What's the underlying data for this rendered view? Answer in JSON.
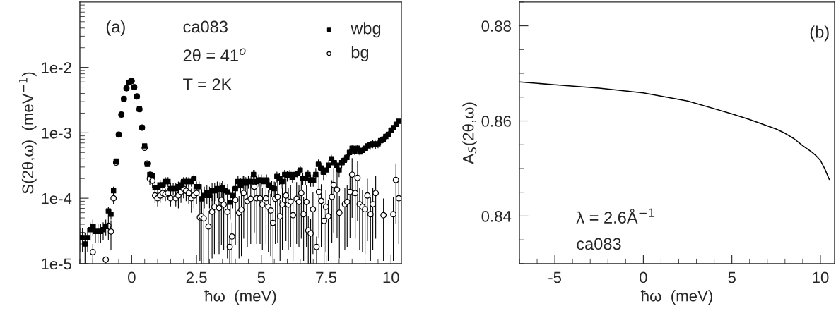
{
  "chart_data": [
    {
      "type": "scatter",
      "xlabel": "ħω  (meV)",
      "ylabel": "S(2θ,ω)  (meV$^{−1}$)",
      "log": "y",
      "xlim": [
        -2,
        10.4
      ],
      "ylim": [
        1e-05,
        0.1
      ],
      "xticks": [
        0,
        2.5,
        5,
        7.5,
        10
      ],
      "yticks": [
        {
          "value": 1e-05,
          "label": "1e-5"
        },
        {
          "value": 0.0001,
          "label": "1e-4"
        },
        {
          "value": 0.001,
          "label": "1e-3"
        },
        {
          "value": 0.01,
          "label": "1e-2"
        }
      ],
      "legend": "top right",
      "grid": false,
      "annotations": [
        "(a)",
        "ca083",
        "2θ = 41$^{o}$",
        "T = 2K"
      ],
      "series": [
        {
          "name": "wbg",
          "color": "#000000",
          "marker": "square",
          "x": [
            -2.0,
            -1.9,
            -1.8,
            -1.7,
            -1.6,
            -1.5,
            -1.4,
            -1.3,
            -1.2,
            -1.1,
            -1.0,
            -0.9,
            -0.8,
            -0.7,
            -0.6,
            -0.5,
            -0.4,
            -0.3,
            -0.2,
            -0.1,
            0.0,
            0.1,
            0.2,
            0.3,
            0.4,
            0.5,
            0.6,
            0.7,
            0.8,
            0.9,
            1.0,
            1.1,
            1.2,
            1.3,
            1.4,
            1.5,
            1.6,
            1.7,
            1.8,
            1.9,
            2.0,
            2.1,
            2.2,
            2.3,
            2.4,
            2.5,
            2.6,
            2.7,
            2.8,
            2.9,
            3.0,
            3.1,
            3.2,
            3.3,
            3.4,
            3.5,
            3.6,
            3.7,
            3.8,
            3.9,
            4.0,
            4.1,
            4.2,
            4.3,
            4.4,
            4.5,
            4.6,
            4.7,
            4.8,
            4.9,
            5.0,
            5.1,
            5.2,
            5.3,
            5.4,
            5.5,
            5.6,
            5.7,
            5.8,
            5.9,
            6.0,
            6.1,
            6.2,
            6.3,
            6.4,
            6.5,
            6.6,
            6.7,
            6.8,
            6.9,
            7.0,
            7.1,
            7.2,
            7.3,
            7.4,
            7.5,
            7.6,
            7.7,
            7.8,
            7.9,
            8.0,
            8.1,
            8.2,
            8.3,
            8.4,
            8.5,
            8.6,
            8.7,
            8.8,
            8.9,
            9.0,
            9.1,
            9.2,
            9.3,
            9.4,
            9.5,
            9.6,
            9.7,
            9.8,
            9.9,
            10.0,
            10.1,
            10.2,
            10.3
          ],
          "values": [
            2.5e-05,
            2.5e-05,
            2e-05,
            2.5e-05,
            3.3e-05,
            3.7e-05,
            3.1e-05,
            3.1e-05,
            3.1e-05,
            3.3e-05,
            3.7e-05,
            6.4e-05,
            5.7e-05,
            0.00013,
            0.00037,
            0.00094,
            0.0019,
            0.0033,
            0.0048,
            0.0059,
            0.0062,
            0.005,
            0.0036,
            0.0023,
            0.0012,
            0.00063,
            0.00033,
            0.00023,
            0.00022,
            0.000145,
            0.000145,
            0.00016,
            0.00016,
            0.00018,
            0.00018,
            0.00014,
            0.00014,
            0.00014,
            0.00015,
            0.00016,
            0.00018,
            0.00018,
            0.00018,
            0.00018,
            0.0002,
            0.00015,
            0.00015,
            9.8e-05,
            0.00011,
            0.00012,
            0.00011,
            0.00013,
            0.00013,
            0.00014,
            0.000135,
            0.000145,
            0.00013,
            0.000125,
            8.7e-05,
            0.00011,
            0.00014,
            0.00018,
            0.00016,
            0.00018,
            0.00017,
            0.00018,
            0.00018,
            0.00023,
            0.00018,
            0.00019,
            0.00019,
            0.00018,
            0.00019,
            0.00016,
            0.000145,
            0.00014,
            0.000215,
            0.0002,
            0.00018,
            0.00023,
            0.00022,
            0.00023,
            0.00021,
            0.00023,
            0.00024,
            0.00027,
            0.0002,
            0.0002,
            0.00023,
            0.00019,
            0.00019,
            0.00023,
            0.00033,
            0.00029,
            0.00025,
            0.00027,
            0.00032,
            0.0004,
            0.00035,
            0.00032,
            0.00027,
            0.00035,
            0.00038,
            0.00042,
            0.0005,
            0.00058,
            0.00052,
            0.00058,
            0.00051,
            0.00054,
            0.00058,
            0.00063,
            0.00065,
            0.00068,
            0.00066,
            0.00068,
            0.00076,
            0.0008,
            0.00088,
            0.00095,
            0.0011,
            0.0012,
            0.00135,
            0.0015
          ],
          "errors": [
            1e-05,
            1e-05,
            1e-05,
            1e-05,
            1e-05,
            1e-05,
            1e-05,
            1e-05,
            1e-05,
            1e-05,
            1e-05,
            1e-05,
            1e-05,
            2e-05,
            null,
            null,
            null,
            null,
            null,
            null,
            null,
            null,
            null,
            null,
            null,
            null,
            null,
            3e-05,
            3e-05,
            3e-05,
            3e-05,
            3e-05,
            3e-05,
            3e-05,
            3e-05,
            3e-05,
            3e-05,
            3e-05,
            3e-05,
            3e-05,
            3e-05,
            3e-05,
            3e-05,
            3e-05,
            3e-05,
            3e-05,
            3e-05,
            4e-05,
            4e-05,
            4e-05,
            4e-05,
            4e-05,
            4e-05,
            4e-05,
            4e-05,
            4e-05,
            4e-05,
            4e-05,
            4e-05,
            4e-05,
            4e-05,
            4e-05,
            4e-05,
            4e-05,
            4e-05,
            4e-05,
            4e-05,
            4e-05,
            4e-05,
            4e-05,
            4e-05,
            4e-05,
            4e-05,
            4e-05,
            4e-05,
            4e-05,
            4e-05,
            4e-05,
            4e-05,
            4e-05,
            4e-05,
            4e-05,
            4e-05,
            4e-05,
            4e-05,
            4e-05,
            4e-05,
            4e-05,
            4e-05,
            4e-05,
            4e-05,
            6e-05,
            6e-05,
            6e-05,
            6e-05,
            6e-05,
            6e-05,
            6e-05,
            6e-05,
            6e-05,
            6e-05,
            6e-05,
            6e-05,
            6e-05,
            6e-05,
            6e-05,
            6e-05,
            6e-05,
            6e-05,
            6e-05,
            6e-05,
            0.0001,
            0.0001,
            0.0001,
            0.0001,
            0.0001,
            0.0001,
            0.0001,
            0.0001,
            0.0001,
            0.0001,
            0.0001,
            0.0001,
            0.0001
          ]
        },
        {
          "name": "bg",
          "color": "#000000",
          "marker": "circle",
          "x": [
            -1.5,
            -1.0,
            -0.9,
            -0.8,
            -0.7,
            -0.6,
            -0.5,
            -0.4,
            -0.3,
            -0.2,
            -0.1,
            0.0,
            0.1,
            0.2,
            0.3,
            0.4,
            0.5,
            0.6,
            0.7,
            0.8,
            0.9,
            1.0,
            1.1,
            1.2,
            1.3,
            1.4,
            1.5,
            1.7,
            1.8,
            1.9,
            2.0,
            2.1,
            2.2,
            2.3,
            2.4,
            2.5,
            2.63,
            2.69,
            2.78,
            2.96,
            3.1,
            3.19,
            3.37,
            3.46,
            3.55,
            3.69,
            3.78,
            3.87,
            4.0,
            4.14,
            4.23,
            4.32,
            4.46,
            4.59,
            4.73,
            4.82,
            4.95,
            5.04,
            5.18,
            5.27,
            5.36,
            5.45,
            5.54,
            5.63,
            5.72,
            5.81,
            5.95,
            6.04,
            6.13,
            6.22,
            6.36,
            6.45,
            6.54,
            6.63,
            6.74,
            6.81,
            6.9,
            6.99,
            7.13,
            7.22,
            7.31,
            7.42,
            7.49,
            7.58,
            7.72,
            7.79,
            7.92,
            8.01,
            8.22,
            8.31,
            8.42,
            8.5,
            8.62,
            8.71,
            8.79,
            8.9,
            9.0,
            9.09,
            9.21,
            9.3,
            9.41,
            9.71,
            10.09,
            10.19,
            10.3
          ],
          "values": [
            1.5e-05,
            1.15e-05,
            3.8e-05,
            3.1e-05,
            0.0001,
            0.00035,
            0.00094,
            0.0019,
            0.0033,
            0.0048,
            0.0059,
            0.0062,
            0.005,
            0.0036,
            0.0023,
            0.0012,
            0.00059,
            0.00034,
            0.0002,
            0.000185,
            0.00011,
            0.0001,
            0.00011,
            0.00012,
            0.000115,
            0.00012,
            0.0001,
            0.0001,
            0.00011,
            0.000125,
            0.00014,
            0.00013,
            0.00012,
            0.0001,
            0.00011,
            0.00012,
            5.1e-05,
            5.3e-05,
            4.9e-05,
            3.7e-05,
            6.2e-05,
            7.4e-05,
            7.1e-05,
            9.4e-05,
            8e-05,
            6.2e-05,
            1.8e-05,
            2.6e-05,
            9.4e-05,
            6e-05,
            6.7e-05,
            0.00012,
            9e-05,
            9.8e-05,
            0.00015,
            0.0001,
            0.0001,
            8e-05,
            0.0001,
            7.4e-05,
            6.5e-05,
            4.2e-05,
            9.8e-05,
            0.000105,
            5.3e-05,
            8e-05,
            0.00011,
            8e-05,
            8.9e-05,
            5.5e-05,
            9.8e-05,
            8.8e-05,
            0.00012,
            5.7e-05,
            8.8e-05,
            3.2e-05,
            2.9e-05,
            6.8e-05,
            1.8e-05,
            0.000125,
            9.1e-05,
            4.5e-05,
            7.4e-05,
            5.3e-05,
            0.000105,
            0.00016,
            0.000135,
            6e-05,
            8.1e-05,
            8.8e-05,
            0.000125,
            0.00023,
            0.00012,
            0.000205,
            8.1e-05,
            7.4e-05,
            6.8e-05,
            0.00011,
            5.7e-05,
            8.1e-05,
            0.00012,
            5.5e-05,
            5.7e-05,
            0.00019,
            0.0001
          ],
          "errors": [
            5e-06,
            1e-06,
            1.5e-05,
            1.5e-05,
            2e-05,
            null,
            null,
            null,
            null,
            null,
            null,
            null,
            null,
            null,
            null,
            null,
            null,
            null,
            4e-05,
            4e-05,
            2.5e-05,
            2.5e-05,
            2.5e-05,
            2.5e-05,
            2.5e-05,
            2.5e-05,
            2.5e-05,
            2.5e-05,
            4e-05,
            4e-05,
            4e-05,
            4e-05,
            4e-05,
            4e-05,
            4e-05,
            4e-05,
            4e-05,
            4.3e-05,
            3.9e-05,
            2.7e-05,
            5e-05,
            6e-05,
            5.7e-05,
            7.5e-05,
            6.4e-05,
            5e-05,
            8e-06,
            1.6e-05,
            7.5e-05,
            4.8e-05,
            5.4e-05,
            9.6e-05,
            7.2e-05,
            7.8e-05,
            0.00012,
            8e-05,
            8e-05,
            6.4e-05,
            8e-05,
            5.9e-05,
            5.2e-05,
            3.2e-05,
            7.8e-05,
            8.4e-05,
            4.2e-05,
            6.4e-05,
            8.8e-05,
            6.4e-05,
            7.1e-05,
            4.4e-05,
            7.8e-05,
            7e-05,
            9.6e-05,
            4.6e-05,
            7e-05,
            2.2e-05,
            1.9e-05,
            5.4e-05,
            8e-06,
            0.0001,
            7.3e-05,
            3.5e-05,
            5.9e-05,
            4.2e-05,
            8.4e-05,
            0.00013,
            0.00011,
            4.8e-05,
            6.5e-05,
            7e-05,
            0.0001,
            0.00018,
            9.6e-05,
            0.00016,
            6.5e-05,
            5.9e-05,
            5.4e-05,
            8.8e-05,
            4.6e-05,
            6.5e-05,
            9.6e-05,
            4.4e-05,
            4.6e-05,
            0.00015,
            8e-05
          ]
        }
      ]
    },
    {
      "type": "line",
      "xlabel": "ħω  (meV)",
      "ylabel": "A$_{S}$(2θ,ω)",
      "xlim": [
        -7,
        10.8
      ],
      "ylim": [
        0.83,
        0.885
      ],
      "xticks": [
        -5,
        0,
        5,
        10
      ],
      "yticks": [
        0.84,
        0.86,
        0.88
      ],
      "grid": false,
      "legend": false,
      "annotations": [
        "(b)",
        "λ = 2.6Å$^{−1}$",
        "ca083"
      ],
      "series": [
        {
          "color": "#000000",
          "line_style": "solid",
          "marker": "none",
          "x": [
            -7,
            -5,
            -2.5,
            0,
            2.5,
            5,
            6,
            7.5,
            8,
            8.5,
            9,
            9.5,
            9.75,
            10,
            10.25,
            10.5
          ],
          "values": [
            0.8682,
            0.8676,
            0.8669,
            0.8659,
            0.8642,
            0.8615,
            0.8603,
            0.8583,
            0.8574,
            0.8563,
            0.8548,
            0.8535,
            0.8527,
            0.8517,
            0.8499,
            0.8477
          ]
        }
      ]
    }
  ]
}
